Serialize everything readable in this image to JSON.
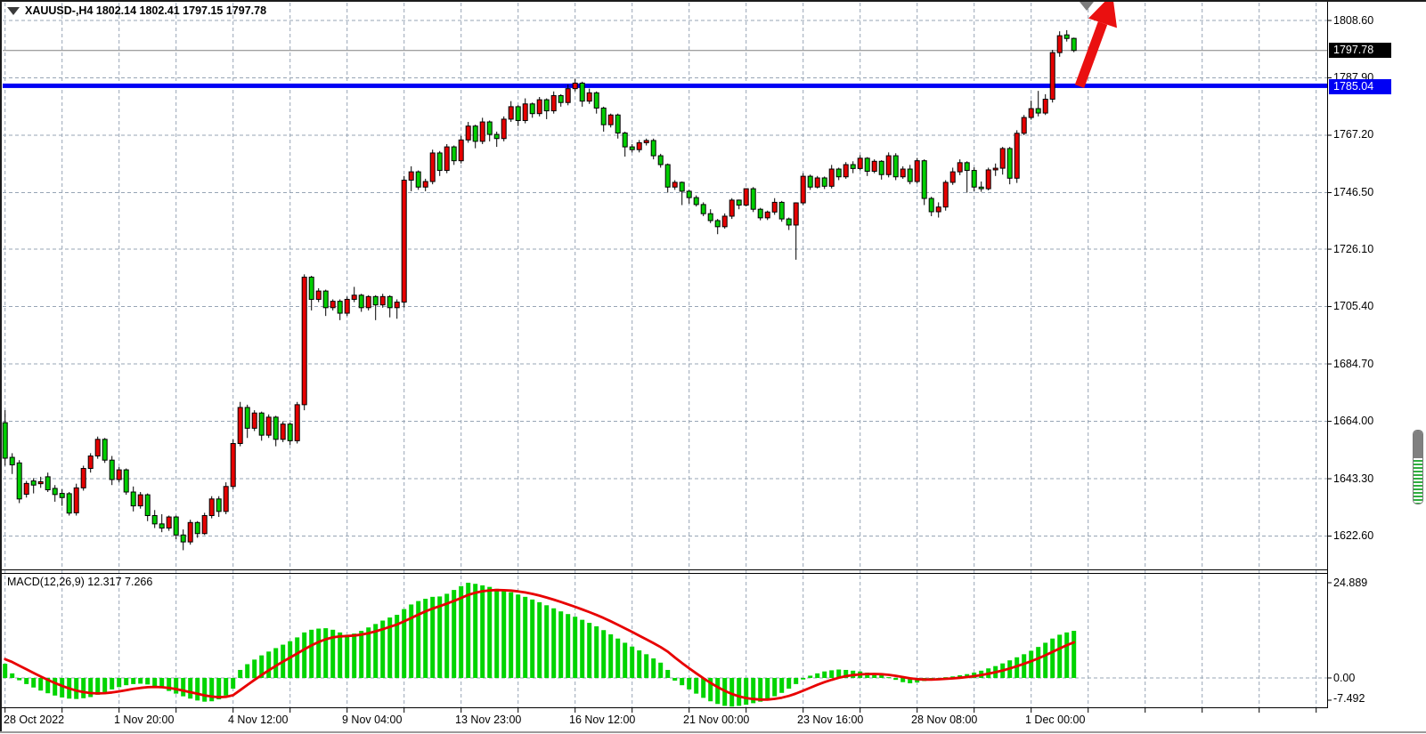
{
  "window": {
    "title": "XAUUSD-,H4 1802.14 1802.41 1797.15 1797.78",
    "symbol": "XAUUSD-",
    "timeframe": "H4"
  },
  "price_axis": {
    "ticks": [
      "1808.60",
      "1787.90",
      "1767.20",
      "1746.50",
      "1726.10",
      "1705.40",
      "1684.70",
      "1664.00",
      "1643.30",
      "1622.60"
    ],
    "tick_values": [
      1808.6,
      1787.9,
      1767.2,
      1746.5,
      1726.1,
      1705.4,
      1684.7,
      1664.0,
      1643.3,
      1622.6
    ],
    "bid_badge": "1797.78",
    "level_badge": "1785.04"
  },
  "time_axis": {
    "labels": [
      {
        "text": "28 Oct 2022",
        "x": 4
      },
      {
        "text": "1 Nov 20:00",
        "x": 128
      },
      {
        "text": "4 Nov 12:00",
        "x": 256
      },
      {
        "text": "9 Nov 04:00",
        "x": 384
      },
      {
        "text": "13 Nov 23:00",
        "x": 511
      },
      {
        "text": "16 Nov 12:00",
        "x": 639
      },
      {
        "text": "21 Nov 00:00",
        "x": 767
      },
      {
        "text": "23 Nov 16:00",
        "x": 895
      },
      {
        "text": "28 Nov 08:00",
        "x": 1023
      },
      {
        "text": "1 Dec 00:00",
        "x": 1151
      }
    ]
  },
  "indicator": {
    "label": "MACD(12,26,9) 12.317 7.266",
    "name": "MACD",
    "params": "12,26,9",
    "main_value": 12.317,
    "signal_value": 7.266,
    "axis": {
      "max": "24.889",
      "zero": "0.00",
      "min": "-7.492"
    }
  },
  "objects": {
    "horizontal_line": {
      "price": 1785.04,
      "color": "#0000f4"
    },
    "bid_line": {
      "price": 1797.78,
      "color": "#808080"
    },
    "arrow": {
      "color": "#ea1010",
      "direction": "up-right"
    },
    "triangle_marker": {
      "color": "#7d7d7d",
      "direction": "down"
    }
  },
  "chart_data": {
    "type": "candlestick",
    "title": "XAUUSD- H4 with MACD(12,26,9)",
    "symbol": "XAUUSD-",
    "timeframe": "H4",
    "grid": true,
    "bull_color": "#e60000",
    "bear_color": "#00ce00",
    "last_bar": {
      "open": 1802.14,
      "high": 1802.41,
      "low": 1797.15,
      "close": 1797.78
    },
    "ylim": [
      1612,
      1815
    ],
    "x_tick_labels": [
      "28 Oct 2022",
      "1 Nov 20:00",
      "4 Nov 12:00",
      "9 Nov 04:00",
      "13 Nov 23:00",
      "16 Nov 12:00",
      "21 Nov 00:00",
      "23 Nov 16:00",
      "28 Nov 08:00",
      "1 Dec 00:00"
    ],
    "candles_ohlc": [
      [
        1663.5,
        1668,
        1648,
        1650.7
      ],
      [
        1651,
        1652.5,
        1645,
        1648.3
      ],
      [
        1649,
        1650,
        1634.5,
        1636
      ],
      [
        1637.7,
        1642.5,
        1636.5,
        1641.6
      ],
      [
        1642.5,
        1643.5,
        1638,
        1641
      ],
      [
        1641.5,
        1644,
        1640,
        1642.2
      ],
      [
        1644,
        1645.5,
        1638.5,
        1639.3
      ],
      [
        1639.8,
        1641,
        1635,
        1637.6
      ],
      [
        1638,
        1639.5,
        1633.5,
        1636.5
      ],
      [
        1637.9,
        1638.5,
        1630,
        1630.9
      ],
      [
        1631,
        1641.5,
        1630,
        1640
      ],
      [
        1640,
        1648,
        1639,
        1647
      ],
      [
        1647,
        1652.5,
        1645.5,
        1651.5
      ],
      [
        1651.5,
        1658.5,
        1650.5,
        1657.5
      ],
      [
        1657.5,
        1658,
        1649,
        1650
      ],
      [
        1650,
        1651.5,
        1641,
        1643
      ],
      [
        1643,
        1647.5,
        1642,
        1646.5
      ],
      [
        1646.5,
        1647,
        1637.5,
        1638.5
      ],
      [
        1638.5,
        1640.5,
        1631.5,
        1633.5
      ],
      [
        1633.5,
        1638.5,
        1632.5,
        1637.5
      ],
      [
        1637.5,
        1638,
        1628,
        1630
      ],
      [
        1630,
        1632,
        1625.5,
        1627
      ],
      [
        1627,
        1630.5,
        1624,
        1625.5
      ],
      [
        1625.5,
        1630,
        1624.5,
        1629.5
      ],
      [
        1629.5,
        1630,
        1621.5,
        1623
      ],
      [
        1623,
        1625,
        1617.5,
        1620.5
      ],
      [
        1620.5,
        1628.5,
        1619.5,
        1627.5
      ],
      [
        1627.5,
        1628,
        1622,
        1623.5
      ],
      [
        1623.5,
        1631,
        1623,
        1630
      ],
      [
        1630,
        1637,
        1629,
        1636
      ],
      [
        1636,
        1637,
        1629.5,
        1631.5
      ],
      [
        1631.5,
        1642,
        1630.5,
        1640.5
      ],
      [
        1640.5,
        1657.5,
        1639.5,
        1656
      ],
      [
        1656,
        1671,
        1655,
        1669
      ],
      [
        1669,
        1670,
        1658,
        1661.5
      ],
      [
        1661.5,
        1668,
        1660.5,
        1667
      ],
      [
        1667,
        1667.5,
        1657,
        1659
      ],
      [
        1659,
        1666.5,
        1658,
        1665.5
      ],
      [
        1665.5,
        1666,
        1655,
        1657.5
      ],
      [
        1657.5,
        1664,
        1656.5,
        1663
      ],
      [
        1663,
        1663.5,
        1655.5,
        1657
      ],
      [
        1657,
        1671,
        1656,
        1670
      ],
      [
        1670,
        1717,
        1668,
        1716
      ],
      [
        1716,
        1716.5,
        1704,
        1708
      ],
      [
        1708,
        1712,
        1707,
        1711
      ],
      [
        1711,
        1711.5,
        1702,
        1705
      ],
      [
        1705,
        1708,
        1704,
        1707.3
      ],
      [
        1707.3,
        1708,
        1700.5,
        1703
      ],
      [
        1703,
        1709,
        1702,
        1708
      ],
      [
        1708,
        1712.5,
        1707,
        1709.5
      ],
      [
        1709.5,
        1710,
        1703.5,
        1705
      ],
      [
        1705,
        1709.5,
        1704,
        1709
      ],
      [
        1709,
        1709.5,
        1700.5,
        1706
      ],
      [
        1706,
        1710,
        1705,
        1709
      ],
      [
        1709,
        1709.5,
        1701.5,
        1705
      ],
      [
        1705,
        1708,
        1701,
        1707
      ],
      [
        1707,
        1752.5,
        1705,
        1751
      ],
      [
        1751,
        1756,
        1747,
        1754
      ],
      [
        1754,
        1754.5,
        1747.5,
        1748.5
      ],
      [
        1748.5,
        1751.5,
        1747,
        1750.5
      ],
      [
        1750.5,
        1762,
        1749.5,
        1760.8
      ],
      [
        1760.8,
        1761.5,
        1752.5,
        1754.5
      ],
      [
        1754.5,
        1764,
        1753.5,
        1763
      ],
      [
        1763,
        1763.5,
        1756.5,
        1758
      ],
      [
        1758,
        1767,
        1757,
        1765.5
      ],
      [
        1765.5,
        1772,
        1764.5,
        1770.5
      ],
      [
        1770.5,
        1771,
        1762.5,
        1765
      ],
      [
        1765,
        1773.5,
        1764,
        1772
      ],
      [
        1772,
        1772.5,
        1765,
        1767.5
      ],
      [
        1767.5,
        1768.5,
        1763,
        1766
      ],
      [
        1766,
        1774,
        1765,
        1773
      ],
      [
        1773,
        1779.5,
        1772,
        1777.5
      ],
      [
        1777.5,
        1778,
        1770.5,
        1772.5
      ],
      [
        1772.5,
        1780.5,
        1771.5,
        1778.5
      ],
      [
        1778.5,
        1779,
        1773.5,
        1775
      ],
      [
        1775,
        1781,
        1774,
        1780
      ],
      [
        1780,
        1780.5,
        1773,
        1776
      ],
      [
        1776,
        1783,
        1775,
        1781.5
      ],
      [
        1781.5,
        1782,
        1777.5,
        1779
      ],
      [
        1779,
        1785.5,
        1778,
        1784
      ],
      [
        1784,
        1787.5,
        1783,
        1786
      ],
      [
        1786,
        1786.5,
        1777.5,
        1779.5
      ],
      [
        1779.5,
        1784,
        1778.5,
        1782.5
      ],
      [
        1782.5,
        1783,
        1775,
        1777
      ],
      [
        1777,
        1777.5,
        1768.5,
        1771
      ],
      [
        1771,
        1775,
        1770,
        1774.5
      ],
      [
        1774.5,
        1775,
        1766,
        1768
      ],
      [
        1768,
        1768.5,
        1759.5,
        1763
      ],
      [
        1763,
        1764,
        1761,
        1762
      ],
      [
        1762,
        1765.5,
        1761,
        1764.5
      ],
      [
        1764.5,
        1766,
        1763.5,
        1765.3
      ],
      [
        1765.3,
        1766,
        1758.5,
        1759.8
      ],
      [
        1759.8,
        1760.5,
        1755.5,
        1756.6
      ],
      [
        1756.6,
        1757,
        1746.5,
        1748.5
      ],
      [
        1748.5,
        1751,
        1747.5,
        1750.2
      ],
      [
        1750.2,
        1750.5,
        1742,
        1747
      ],
      [
        1747,
        1747.5,
        1742.5,
        1744.7
      ],
      [
        1744.7,
        1745.5,
        1741.5,
        1742.2
      ],
      [
        1742.2,
        1743,
        1738,
        1738.9
      ],
      [
        1738.9,
        1740.5,
        1735.5,
        1736.4
      ],
      [
        1736.4,
        1737,
        1731.5,
        1734.2
      ],
      [
        1734.2,
        1739,
        1733.5,
        1738
      ],
      [
        1738,
        1744.5,
        1737,
        1743.8
      ],
      [
        1743.8,
        1744,
        1740.5,
        1742
      ],
      [
        1742,
        1748,
        1741.5,
        1747.9
      ],
      [
        1747.9,
        1748.5,
        1739.5,
        1740.5
      ],
      [
        1740.5,
        1741,
        1736.5,
        1737.4
      ],
      [
        1737.4,
        1740,
        1736.6,
        1739.5
      ],
      [
        1739.5,
        1744.5,
        1738.5,
        1743
      ],
      [
        1743,
        1743.5,
        1736,
        1737
      ],
      [
        1737,
        1737.5,
        1733,
        1734.8
      ],
      [
        1734.8,
        1743,
        1722.3,
        1742.8
      ],
      [
        1742.8,
        1753.5,
        1742,
        1752.4
      ],
      [
        1752.4,
        1753,
        1747.5,
        1748.5
      ],
      [
        1748.5,
        1752.5,
        1748,
        1751.8
      ],
      [
        1751.8,
        1752.3,
        1747.8,
        1748.8
      ],
      [
        1748.8,
        1756.5,
        1748,
        1755
      ],
      [
        1755,
        1755.5,
        1751,
        1752.2
      ],
      [
        1752.2,
        1757.5,
        1751.5,
        1756.6
      ],
      [
        1756.6,
        1757.8,
        1753.5,
        1755.2
      ],
      [
        1755.2,
        1760,
        1754.5,
        1758.9
      ],
      [
        1758.9,
        1759.3,
        1752.5,
        1754.2
      ],
      [
        1754.2,
        1758.5,
        1753.5,
        1757.8
      ],
      [
        1757.8,
        1758.2,
        1751.2,
        1753
      ],
      [
        1753,
        1761,
        1752,
        1759.8
      ],
      [
        1759.8,
        1760.7,
        1751,
        1752.2
      ],
      [
        1752.2,
        1756,
        1751.5,
        1755
      ],
      [
        1755,
        1756.5,
        1749.5,
        1750.5
      ],
      [
        1750.5,
        1759,
        1749.8,
        1758
      ],
      [
        1758,
        1758.5,
        1742,
        1744.4
      ],
      [
        1744.4,
        1745,
        1738,
        1739.6
      ],
      [
        1739.6,
        1743,
        1737.5,
        1741.3
      ],
      [
        1741.3,
        1751,
        1740,
        1750.2
      ],
      [
        1750.2,
        1755.5,
        1749.3,
        1754
      ],
      [
        1754,
        1758.5,
        1752.8,
        1757.3
      ],
      [
        1757.3,
        1757.8,
        1746.5,
        1754.5
      ],
      [
        1754.5,
        1755.6,
        1747,
        1748.5
      ],
      [
        1748.5,
        1750.5,
        1746.8,
        1747.9
      ],
      [
        1747.9,
        1755.5,
        1747.3,
        1754.7
      ],
      [
        1754.7,
        1757,
        1752.5,
        1755.3
      ],
      [
        1755.3,
        1763,
        1753,
        1762.4
      ],
      [
        1762.4,
        1763,
        1749.5,
        1751.7
      ],
      [
        1751.7,
        1769,
        1750,
        1767.9
      ],
      [
        1767.9,
        1774.5,
        1767.2,
        1773.6
      ],
      [
        1773.6,
        1779.7,
        1772.8,
        1776.8
      ],
      [
        1776.8,
        1783.2,
        1774,
        1775.2
      ],
      [
        1775.2,
        1782,
        1774.5,
        1780.2
      ],
      [
        1780.2,
        1798,
        1779,
        1797
      ],
      [
        1797,
        1804.7,
        1795.5,
        1803.1
      ],
      [
        1803.4,
        1805.1,
        1801,
        1802.1
      ],
      [
        1802.14,
        1802.41,
        1797.15,
        1797.78
      ]
    ],
    "macd": {
      "type": "bar+line",
      "params": {
        "fast": 12,
        "slow": 26,
        "signal": 9
      },
      "histogram_color": "#00d400",
      "signal_color": "#e80000",
      "ylim": [
        -7.492,
        24.889
      ],
      "signal_start": 5.2,
      "signal_last": 7.266,
      "histogram": [
        3.7,
        1.2,
        -0.6,
        -1.6,
        -2.5,
        -3.3,
        -4.0,
        -4.6,
        -5.1,
        -5.4,
        -5.5,
        -5.3,
        -5.0,
        -4.4,
        -3.7,
        -3.0,
        -2.4,
        -1.9,
        -1.6,
        -1.5,
        -1.7,
        -2.1,
        -2.7,
        -3.4,
        -4.1,
        -4.8,
        -5.4,
        -5.9,
        -6.2,
        -6.1,
        -5.6,
        -4.6,
        -2.8,
        2.1,
        3.6,
        4.8,
        5.9,
        6.9,
        7.8,
        8.7,
        9.6,
        10.6,
        11.9,
        12.6,
        12.9,
        13.0,
        12.6,
        11.9,
        11.3,
        11.6,
        12.3,
        13.2,
        14.1,
        15.0,
        15.8,
        16.5,
        18.0,
        19.2,
        20.1,
        20.7,
        21.2,
        21.3,
        22.0,
        23.0,
        24.0,
        24.889,
        24.6,
        24.2,
        23.8,
        23.3,
        22.8,
        22.4,
        21.8,
        21.2,
        20.5,
        19.8,
        19.0,
        18.2,
        17.4,
        16.7,
        16.0,
        15.2,
        14.4,
        13.5,
        12.5,
        11.4,
        10.3,
        9.2,
        8.2,
        7.2,
        6.2,
        5.1,
        4.0,
        2.1,
        -0.7,
        -1.9,
        -3.0,
        -4.1,
        -5.2,
        -6.1,
        -6.8,
        -7.3,
        -7.492,
        -7.3,
        -7.0,
        -6.6,
        -6.2,
        -5.6,
        -4.8,
        -3.9,
        -2.8,
        -1.6,
        -0.4,
        0.6,
        1.2,
        1.7,
        2.0,
        2.2,
        2.1,
        1.9,
        1.7,
        1.4,
        1.1,
        0.7,
        0.2,
        -0.5,
        -1.1,
        -1.4,
        -1.2,
        -0.8,
        -0.4,
        -0.1,
        0.2,
        0.4,
        0.7,
        1.0,
        1.4,
        1.9,
        2.5,
        3.1,
        3.8,
        4.6,
        5.4,
        6.2,
        7.1,
        8.1,
        9.2,
        10.3,
        11.3,
        11.9,
        12.317
      ]
    }
  }
}
